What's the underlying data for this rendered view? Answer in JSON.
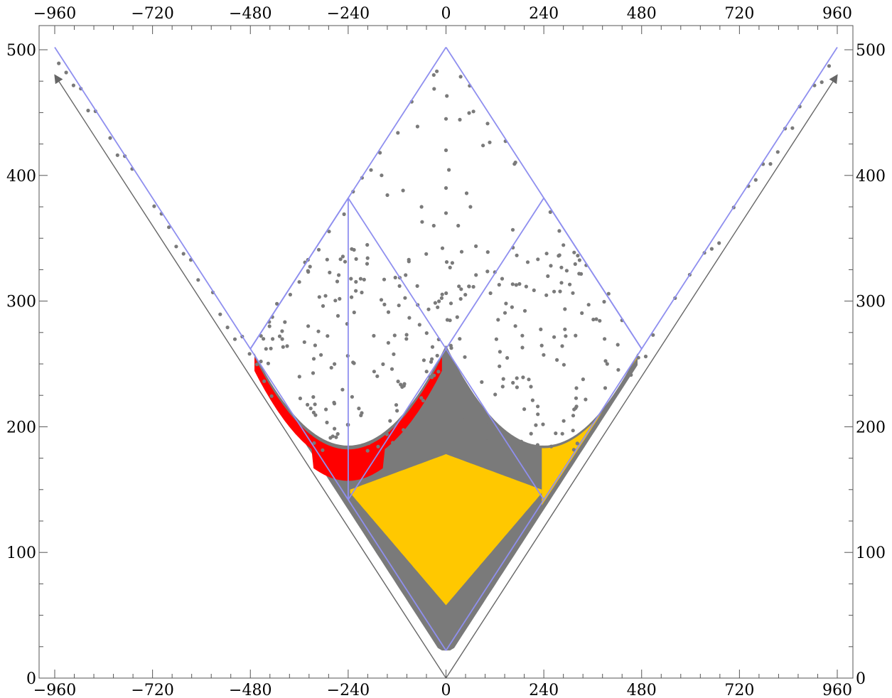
{
  "chart_data": {
    "type": "scatter",
    "title": "",
    "xlabel": "",
    "ylabel": "",
    "xlim": [
      -960,
      960
    ],
    "ylim": [
      0,
      500
    ],
    "x_ticks": [
      -960,
      -720,
      -480,
      -240,
      0,
      240,
      480,
      720,
      960
    ],
    "x_tick_labels": [
      "−960",
      "−720",
      "−480",
      "−240",
      "0",
      "240",
      "480",
      "720",
      "960"
    ],
    "y_ticks": [
      0,
      100,
      200,
      300,
      400,
      500
    ],
    "y_tick_labels": [
      "0",
      "100",
      "200",
      "300",
      "400",
      "500"
    ],
    "grid": false,
    "axes_frame": "all four sides, tick labels mirrored on top and right",
    "colors": {
      "gray_points": "#7a7a7a",
      "gold_points": "#ffc800",
      "red_points": "#ff0000",
      "guide_lines": "#8f8fef",
      "light_cone": "#666666"
    },
    "series": [
      {
        "kind": "light-cone arrows",
        "color": "#666666",
        "lines": [
          {
            "from": [
              0,
              0
            ],
            "to": [
              -960,
              480
            ]
          },
          {
            "from": [
              0,
              0
            ],
            "to": [
              960,
              480
            ]
          }
        ]
      },
      {
        "kind": "guide lines",
        "color": "#8f8fef",
        "lines": [
          {
            "from": [
              -960,
              502
            ],
            "to": [
              0,
              22
            ]
          },
          {
            "from": [
              0,
              22
            ],
            "to": [
              960,
              502
            ]
          },
          {
            "from": [
              -480,
              262
            ],
            "to": [
              0,
              502
            ]
          },
          {
            "from": [
              0,
              502
            ],
            "to": [
              480,
              262
            ]
          },
          {
            "from": [
              -480,
              262
            ],
            "to": [
              -240,
              382
            ]
          },
          {
            "from": [
              -240,
              382
            ],
            "to": [
              240,
              142
            ]
          },
          {
            "from": [
              -240,
              142
            ],
            "to": [
              240,
              382
            ]
          },
          {
            "from": [
              240,
              382
            ],
            "to": [
              480,
              262
            ]
          },
          {
            "from": [
              -240,
              382
            ],
            "to": [
              -240,
              142
            ]
          }
        ]
      },
      {
        "kind": "scatter points",
        "color": "#7a7a7a",
        "description_region": "gray points fill the cone from y=22 at x=0 up to ~y=330, forming two bowls centered at x=±240 with sparse points above up to y=502"
      },
      {
        "kind": "scatter points",
        "color": "#ffc800",
        "description_region": "gold points: diamond centered at x=0 from y~58 to ~250, plus band along x in [240,480] y~150-260"
      },
      {
        "kind": "scatter points",
        "color": "#ff0000",
        "description_region": "red points: bowl around x=-240 from y~160 to ~262 on left arc"
      }
    ]
  }
}
